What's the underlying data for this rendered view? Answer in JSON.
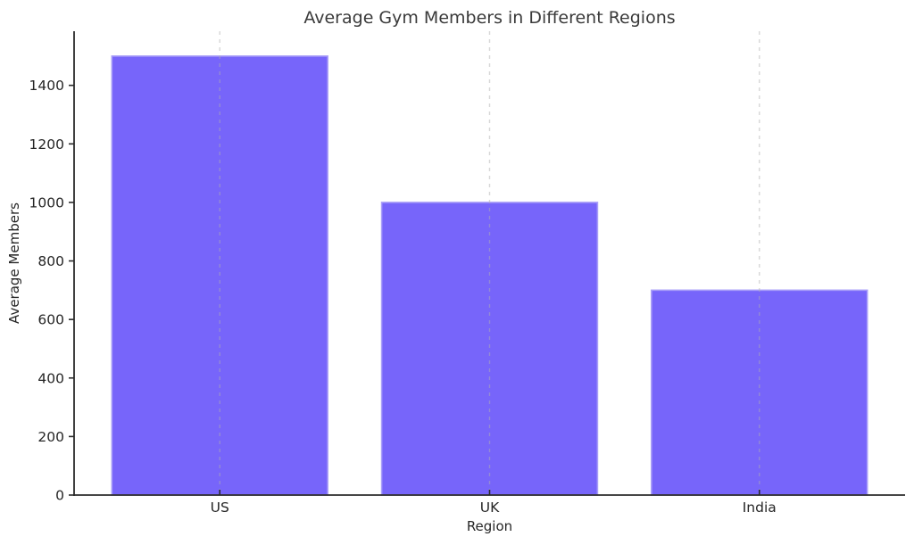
{
  "chart_data": {
    "type": "bar",
    "title": "Average Gym Members in Different Regions",
    "xlabel": "Region",
    "ylabel": "Average Members",
    "categories": [
      "US",
      "UK",
      "India"
    ],
    "values": [
      1500,
      1000,
      700
    ],
    "yticks": [
      0,
      200,
      400,
      600,
      800,
      1000,
      1200,
      1400
    ],
    "ylim": [
      0,
      1585
    ],
    "legend": "none",
    "grid": "vertical-dashed-over-bars",
    "colors": {
      "bar_fill": "#7765fa",
      "bar_edge": "#a89df8",
      "gridline": "rgba(176,176,176,0.5)",
      "axis": "#2b2b2b",
      "tick_text": "#262626",
      "title_text": "#3a3a3a",
      "background": "#ffffff"
    }
  }
}
